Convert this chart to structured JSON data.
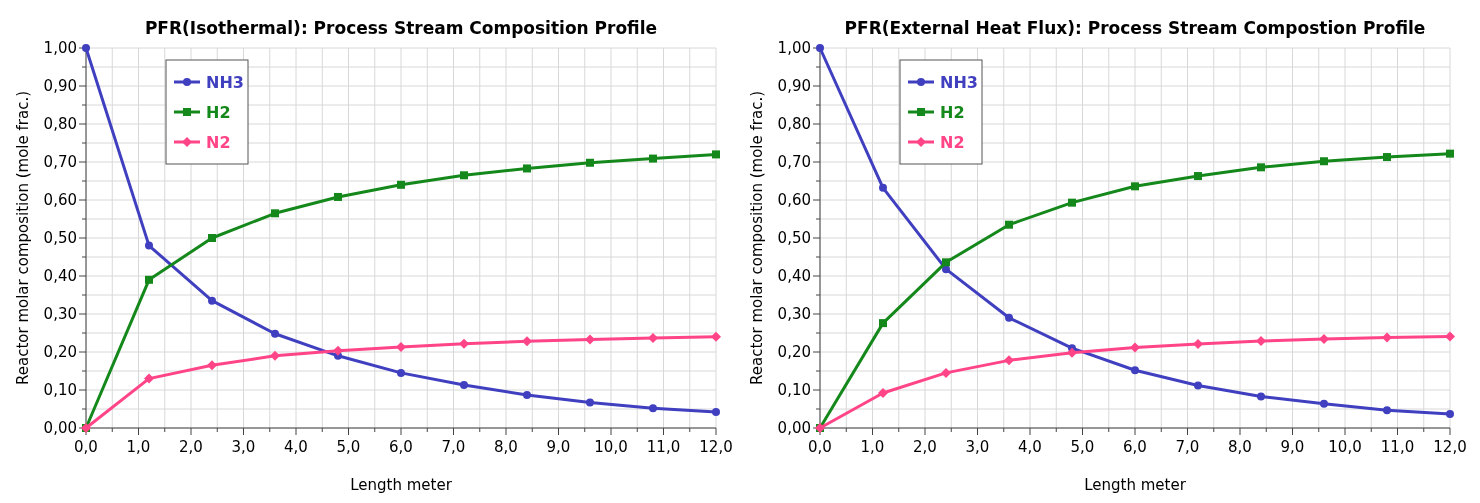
{
  "chart_data": [
    {
      "type": "line",
      "title": "PFR(Isothermal): Process Stream Composition Profile",
      "xlabel": "Length meter",
      "ylabel": "Reactor molar composition (mole frac.)",
      "x": [
        0,
        1.2,
        2.4,
        3.6,
        4.8,
        6,
        7.2,
        8.4,
        9.6,
        10.8,
        12
      ],
      "series": [
        {
          "name": "NH3",
          "color": "#3f3fc0",
          "marker": "circle",
          "values": [
            1.0,
            0.48,
            0.335,
            0.248,
            0.19,
            0.145,
            0.113,
            0.087,
            0.067,
            0.052,
            0.042
          ]
        },
        {
          "name": "H2",
          "color": "#14881a",
          "marker": "square",
          "values": [
            0,
            0.39,
            0.5,
            0.565,
            0.608,
            0.64,
            0.665,
            0.683,
            0.698,
            0.709,
            0.72
          ]
        },
        {
          "name": "N2",
          "color": "#ff4488",
          "marker": "diamond",
          "values": [
            0,
            0.13,
            0.165,
            0.19,
            0.203,
            0.213,
            0.222,
            0.228,
            0.233,
            0.237,
            0.24
          ]
        }
      ],
      "xlim": [
        0,
        12
      ],
      "ylim": [
        0,
        1
      ],
      "xticks": [
        {
          "value": 0,
          "label": "0,0"
        },
        {
          "value": 0.5,
          "label": null
        },
        {
          "value": 1,
          "label": "1,0"
        },
        {
          "value": 1.5,
          "label": null
        },
        {
          "value": 2,
          "label": "2,0"
        },
        {
          "value": 2.5,
          "label": null
        },
        {
          "value": 3,
          "label": "3,0"
        },
        {
          "value": 3.5,
          "label": null
        },
        {
          "value": 4,
          "label": "4,0"
        },
        {
          "value": 4.5,
          "label": null
        },
        {
          "value": 5,
          "label": "5,0"
        },
        {
          "value": 5.5,
          "label": null
        },
        {
          "value": 6,
          "label": "6,0"
        },
        {
          "value": 6.5,
          "label": null
        },
        {
          "value": 7,
          "label": "7,0"
        },
        {
          "value": 7.5,
          "label": null
        },
        {
          "value": 8,
          "label": "8,0"
        },
        {
          "value": 8.5,
          "label": null
        },
        {
          "value": 9,
          "label": "9,0"
        },
        {
          "value": 9.5,
          "label": null
        },
        {
          "value": 10,
          "label": "10,0"
        },
        {
          "value": 10.5,
          "label": null
        },
        {
          "value": 11,
          "label": "11,0"
        },
        {
          "value": 11.5,
          "label": null
        },
        {
          "value": 12,
          "label": "12,0"
        }
      ],
      "yticks": [
        {
          "value": 0,
          "label": "0,00"
        },
        {
          "value": 0.05,
          "label": null
        },
        {
          "value": 0.1,
          "label": "0,10"
        },
        {
          "value": 0.15,
          "label": null
        },
        {
          "value": 0.2,
          "label": "0,20"
        },
        {
          "value": 0.25,
          "label": null
        },
        {
          "value": 0.3,
          "label": "0,30"
        },
        {
          "value": 0.35,
          "label": null
        },
        {
          "value": 0.4,
          "label": "0,40"
        },
        {
          "value": 0.45,
          "label": null
        },
        {
          "value": 0.5,
          "label": "0,50"
        },
        {
          "value": 0.55,
          "label": null
        },
        {
          "value": 0.6,
          "label": "0,60"
        },
        {
          "value": 0.65,
          "label": null
        },
        {
          "value": 0.7,
          "label": "0,70"
        },
        {
          "value": 0.75,
          "label": null
        },
        {
          "value": 0.8,
          "label": "0,80"
        },
        {
          "value": 0.85,
          "label": null
        },
        {
          "value": 0.9,
          "label": "0,90"
        },
        {
          "value": 0.95,
          "label": null
        },
        {
          "value": 1,
          "label": "1,00"
        }
      ],
      "grid": true,
      "legend": "top left",
      "line_style": "solid"
    },
    {
      "type": "line",
      "title": "PFR(External Heat Flux): Process Stream Compostion Profile",
      "xlabel": "Length meter",
      "ylabel": "Reactor molar composition (mole frac.)",
      "x": [
        0,
        1.2,
        2.4,
        3.6,
        4.8,
        6,
        7.2,
        8.4,
        9.6,
        10.8,
        12
      ],
      "series": [
        {
          "name": "NH3",
          "color": "#3f3fc0",
          "marker": "circle",
          "values": [
            1.0,
            0.632,
            0.418,
            0.29,
            0.21,
            0.152,
            0.112,
            0.083,
            0.064,
            0.047,
            0.037
          ]
        },
        {
          "name": "H2",
          "color": "#14881a",
          "marker": "square",
          "values": [
            0,
            0.276,
            0.436,
            0.535,
            0.593,
            0.636,
            0.663,
            0.686,
            0.702,
            0.713,
            0.722
          ]
        },
        {
          "name": "N2",
          "color": "#ff4488",
          "marker": "diamond",
          "values": [
            0,
            0.092,
            0.145,
            0.178,
            0.198,
            0.212,
            0.221,
            0.229,
            0.234,
            0.238,
            0.241
          ]
        }
      ],
      "xlim": [
        0,
        12
      ],
      "ylim": [
        0,
        1
      ],
      "xticks": [
        {
          "value": 0,
          "label": "0,0"
        },
        {
          "value": 0.5,
          "label": null
        },
        {
          "value": 1,
          "label": "1,0"
        },
        {
          "value": 1.5,
          "label": null
        },
        {
          "value": 2,
          "label": "2,0"
        },
        {
          "value": 2.5,
          "label": null
        },
        {
          "value": 3,
          "label": "3,0"
        },
        {
          "value": 3.5,
          "label": null
        },
        {
          "value": 4,
          "label": "4,0"
        },
        {
          "value": 4.5,
          "label": null
        },
        {
          "value": 5,
          "label": "5,0"
        },
        {
          "value": 5.5,
          "label": null
        },
        {
          "value": 6,
          "label": "6,0"
        },
        {
          "value": 6.5,
          "label": null
        },
        {
          "value": 7,
          "label": "7,0"
        },
        {
          "value": 7.5,
          "label": null
        },
        {
          "value": 8,
          "label": "8,0"
        },
        {
          "value": 8.5,
          "label": null
        },
        {
          "value": 9,
          "label": "9,0"
        },
        {
          "value": 9.5,
          "label": null
        },
        {
          "value": 10,
          "label": "10,0"
        },
        {
          "value": 10.5,
          "label": null
        },
        {
          "value": 11,
          "label": "11,0"
        },
        {
          "value": 11.5,
          "label": null
        },
        {
          "value": 12,
          "label": "12,0"
        }
      ],
      "yticks": [
        {
          "value": 0,
          "label": "0,00"
        },
        {
          "value": 0.05,
          "label": null
        },
        {
          "value": 0.1,
          "label": "0,10"
        },
        {
          "value": 0.15,
          "label": null
        },
        {
          "value": 0.2,
          "label": "0,20"
        },
        {
          "value": 0.25,
          "label": null
        },
        {
          "value": 0.3,
          "label": "0,30"
        },
        {
          "value": 0.35,
          "label": null
        },
        {
          "value": 0.4,
          "label": "0,40"
        },
        {
          "value": 0.45,
          "label": null
        },
        {
          "value": 0.5,
          "label": "0,50"
        },
        {
          "value": 0.55,
          "label": null
        },
        {
          "value": 0.6,
          "label": "0,60"
        },
        {
          "value": 0.65,
          "label": null
        },
        {
          "value": 0.7,
          "label": "0,70"
        },
        {
          "value": 0.75,
          "label": null
        },
        {
          "value": 0.8,
          "label": "0,80"
        },
        {
          "value": 0.85,
          "label": null
        },
        {
          "value": 0.9,
          "label": "0,90"
        },
        {
          "value": 0.95,
          "label": null
        },
        {
          "value": 1,
          "label": "1,00"
        }
      ],
      "grid": true,
      "legend": "top left",
      "line_style": "solid"
    }
  ]
}
